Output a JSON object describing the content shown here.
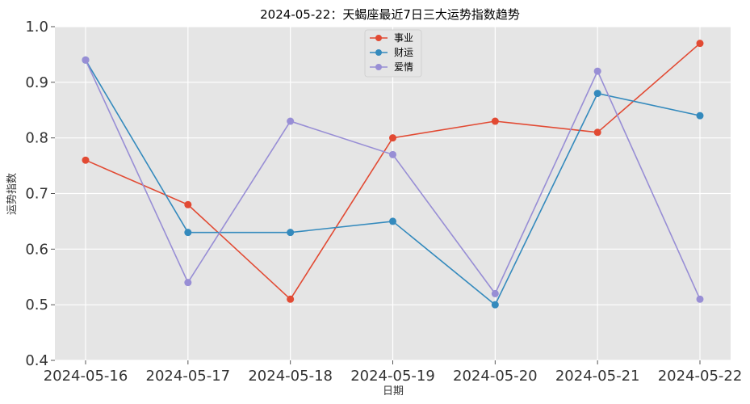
{
  "chart_data": {
    "type": "line",
    "title": "2024-05-22：天蝎座最近7日三大运势指数趋势",
    "xlabel": "日期",
    "ylabel": "运势指数",
    "categories": [
      "2024-05-16",
      "2024-05-17",
      "2024-05-18",
      "2024-05-19",
      "2024-05-20",
      "2024-05-21",
      "2024-05-22"
    ],
    "ylim": [
      0.4,
      1.0
    ],
    "yticks": [
      "0.4",
      "0.5",
      "0.6",
      "0.7",
      "0.8",
      "0.9",
      "1.0"
    ],
    "grid": true,
    "legend_position": "top-center",
    "background": "#e5e5e5",
    "series": [
      {
        "name": "事业",
        "color": "#e24a33",
        "values": [
          0.76,
          0.68,
          0.51,
          0.8,
          0.83,
          0.81,
          0.97
        ]
      },
      {
        "name": "财运",
        "color": "#348abd",
        "values": [
          0.94,
          0.63,
          0.63,
          0.65,
          0.5,
          0.88,
          0.84
        ]
      },
      {
        "name": "爱情",
        "color": "#988ed5",
        "values": [
          0.94,
          0.54,
          0.83,
          0.77,
          0.52,
          0.92,
          0.51
        ]
      }
    ]
  }
}
